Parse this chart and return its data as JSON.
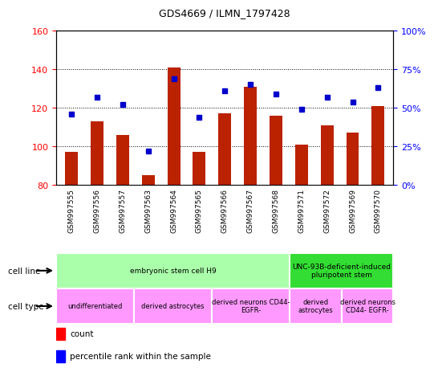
{
  "title": "GDS4669 / ILMN_1797428",
  "samples": [
    "GSM997555",
    "GSM997556",
    "GSM997557",
    "GSM997563",
    "GSM997564",
    "GSM997565",
    "GSM997566",
    "GSM997567",
    "GSM997568",
    "GSM997571",
    "GSM997572",
    "GSM997569",
    "GSM997570"
  ],
  "count_values": [
    97,
    113,
    106,
    85,
    141,
    97,
    117,
    131,
    116,
    101,
    111,
    107,
    121
  ],
  "percentile_values": [
    46,
    57,
    52,
    22,
    69,
    44,
    61,
    65,
    59,
    49,
    57,
    54,
    63
  ],
  "ylim_left": [
    80,
    160
  ],
  "ylim_right": [
    0,
    100
  ],
  "yticks_left": [
    80,
    100,
    120,
    140,
    160
  ],
  "yticks_right": [
    0,
    25,
    50,
    75,
    100
  ],
  "bar_color": "#bb2200",
  "dot_color": "#0000cc",
  "cell_line_groups": [
    {
      "label": "embryonic stem cell H9",
      "start": 0,
      "end": 9,
      "color": "#aaffaa"
    },
    {
      "label": "UNC-93B-deficient-induced\npluripotent stem",
      "start": 9,
      "end": 13,
      "color": "#33dd33"
    }
  ],
  "cell_type_groups": [
    {
      "label": "undifferentiated",
      "start": 0,
      "end": 3,
      "color": "#ff99ff"
    },
    {
      "label": "derived astrocytes",
      "start": 3,
      "end": 6,
      "color": "#ff99ff"
    },
    {
      "label": "derived neurons CD44-\nEGFR-",
      "start": 6,
      "end": 9,
      "color": "#ff99ff"
    },
    {
      "label": "derived\nastrocytes",
      "start": 9,
      "end": 11,
      "color": "#ff99ff"
    },
    {
      "label": "derived neurons\nCD44- EGFR-",
      "start": 11,
      "end": 13,
      "color": "#ff99ff"
    }
  ],
  "xtick_bg": "#d0d0d0"
}
